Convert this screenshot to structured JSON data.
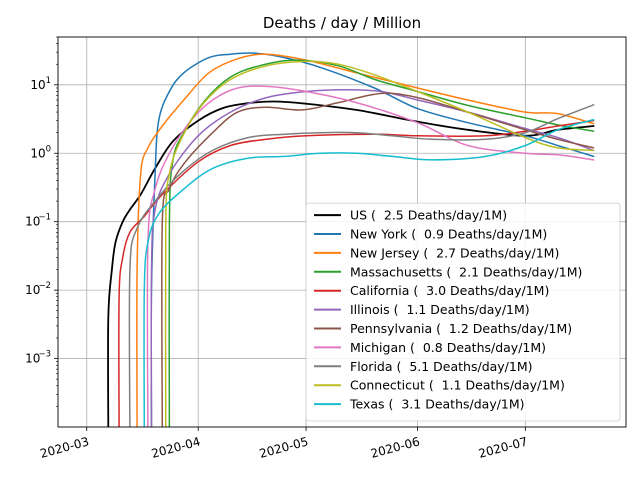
{
  "chart_data": {
    "type": "line",
    "title": "Deaths / day / Million",
    "xlabel": "",
    "ylabel": "",
    "yscale": "log",
    "ylim": [
      0.0001,
      50
    ],
    "xlim": [
      "2020-02-22",
      "2020-07-29"
    ],
    "grid": true,
    "legend_position": "lower-right",
    "x_ticks": [
      {
        "date": "2020-03-01",
        "label": "2020-03"
      },
      {
        "date": "2020-04-01",
        "label": "2020-04"
      },
      {
        "date": "2020-05-01",
        "label": "2020-05"
      },
      {
        "date": "2020-06-01",
        "label": "2020-06"
      },
      {
        "date": "2020-07-01",
        "label": "2020-07"
      }
    ],
    "y_ticks": [
      {
        "value": 0.001,
        "base": "10",
        "exp": "−3"
      },
      {
        "value": 0.01,
        "base": "10",
        "exp": "−2"
      },
      {
        "value": 0.1,
        "base": "10",
        "exp": "−1"
      },
      {
        "value": 1,
        "base": "10",
        "exp": "0"
      },
      {
        "value": 10,
        "base": "10",
        "exp": "1"
      }
    ],
    "series": [
      {
        "name": "US",
        "legend": "US (  2.5 Deaths/day/1M)",
        "color": "#000000",
        "points": [
          [
            "2020-03-07",
            8e-05
          ],
          [
            "2020-03-07",
            0.004
          ],
          [
            "2020-03-08",
            0.02
          ],
          [
            "2020-03-09",
            0.05
          ],
          [
            "2020-03-11",
            0.1
          ],
          [
            "2020-03-13",
            0.15
          ],
          [
            "2020-03-16",
            0.25
          ],
          [
            "2020-03-20",
            0.6
          ],
          [
            "2020-03-25",
            1.5
          ],
          [
            "2020-04-01",
            3.0
          ],
          [
            "2020-04-08",
            4.6
          ],
          [
            "2020-04-15",
            5.4
          ],
          [
            "2020-04-22",
            5.7
          ],
          [
            "2020-05-01",
            5.3
          ],
          [
            "2020-05-15",
            4.3
          ],
          [
            "2020-06-01",
            2.9
          ],
          [
            "2020-06-15",
            2.2
          ],
          [
            "2020-07-01",
            1.8
          ],
          [
            "2020-07-10",
            2.2
          ],
          [
            "2020-07-20",
            2.5
          ]
        ]
      },
      {
        "name": "New York",
        "legend": "New York (  0.9 Deaths/day/1M)",
        "color": "#1f77b4",
        "points": [
          [
            "2020-03-19",
            8e-05
          ],
          [
            "2020-03-19",
            0.01
          ],
          [
            "2020-03-20",
            0.5
          ],
          [
            "2020-03-21",
            3
          ],
          [
            "2020-03-24",
            8
          ],
          [
            "2020-03-28",
            15
          ],
          [
            "2020-04-04",
            25
          ],
          [
            "2020-04-10",
            28
          ],
          [
            "2020-04-17",
            29
          ],
          [
            "2020-04-25",
            25
          ],
          [
            "2020-05-05",
            18
          ],
          [
            "2020-05-20",
            9
          ],
          [
            "2020-06-01",
            4.5
          ],
          [
            "2020-06-15",
            2.8
          ],
          [
            "2020-07-01",
            1.8
          ],
          [
            "2020-07-10",
            1.3
          ],
          [
            "2020-07-20",
            0.9
          ]
        ]
      },
      {
        "name": "New Jersey",
        "legend": "New Jersey (  2.7 Deaths/day/1M)",
        "color": "#ff7f0e",
        "points": [
          [
            "2020-03-15",
            8e-05
          ],
          [
            "2020-03-15",
            0.02
          ],
          [
            "2020-03-16",
            0.5
          ],
          [
            "2020-03-18",
            1.2
          ],
          [
            "2020-03-22",
            2.5
          ],
          [
            "2020-03-28",
            6
          ],
          [
            "2020-04-04",
            15
          ],
          [
            "2020-04-12",
            24
          ],
          [
            "2020-04-20",
            28
          ],
          [
            "2020-05-01",
            23
          ],
          [
            "2020-05-15",
            15
          ],
          [
            "2020-06-01",
            9
          ],
          [
            "2020-06-15",
            6
          ],
          [
            "2020-07-01",
            4
          ],
          [
            "2020-07-10",
            3.8
          ],
          [
            "2020-07-20",
            2.7
          ]
        ]
      },
      {
        "name": "Massachusetts",
        "legend": "Massachusetts (  2.1 Deaths/day/1M)",
        "color": "#2ca02c",
        "points": [
          [
            "2020-03-24",
            8e-05
          ],
          [
            "2020-03-24",
            0.1
          ],
          [
            "2020-03-25",
            0.8
          ],
          [
            "2020-03-28",
            2
          ],
          [
            "2020-04-03",
            6
          ],
          [
            "2020-04-10",
            13
          ],
          [
            "2020-04-18",
            19
          ],
          [
            "2020-04-28",
            23
          ],
          [
            "2020-05-10",
            19
          ],
          [
            "2020-05-20",
            12
          ],
          [
            "2020-06-01",
            8
          ],
          [
            "2020-06-15",
            5
          ],
          [
            "2020-07-01",
            3.3
          ],
          [
            "2020-07-10",
            2.6
          ],
          [
            "2020-07-20",
            2.1
          ]
        ]
      },
      {
        "name": "California",
        "legend": "California (  3.0 Deaths/day/1M)",
        "color": "#d62728",
        "points": [
          [
            "2020-03-10",
            8e-05
          ],
          [
            "2020-03-10",
            0.008
          ],
          [
            "2020-03-11",
            0.03
          ],
          [
            "2020-03-13",
            0.07
          ],
          [
            "2020-03-17",
            0.12
          ],
          [
            "2020-03-22",
            0.25
          ],
          [
            "2020-04-01",
            0.75
          ],
          [
            "2020-04-10",
            1.3
          ],
          [
            "2020-04-20",
            1.6
          ],
          [
            "2020-05-01",
            1.8
          ],
          [
            "2020-05-20",
            1.9
          ],
          [
            "2020-06-01",
            1.8
          ],
          [
            "2020-06-20",
            1.8
          ],
          [
            "2020-07-01",
            2.1
          ],
          [
            "2020-07-10",
            2.5
          ],
          [
            "2020-07-20",
            3.0
          ]
        ]
      },
      {
        "name": "Illinois",
        "legend": "Illinois (  1.1 Deaths/day/1M)",
        "color": "#9467bd",
        "points": [
          [
            "2020-03-19",
            8e-05
          ],
          [
            "2020-03-19",
            0.02
          ],
          [
            "2020-03-20",
            0.15
          ],
          [
            "2020-03-24",
            0.5
          ],
          [
            "2020-04-01",
            1.8
          ],
          [
            "2020-04-10",
            4
          ],
          [
            "2020-04-20",
            6.5
          ],
          [
            "2020-05-01",
            8
          ],
          [
            "2020-05-12",
            8.5
          ],
          [
            "2020-05-22",
            8
          ],
          [
            "2020-06-01",
            6
          ],
          [
            "2020-06-15",
            4
          ],
          [
            "2020-07-01",
            2.3
          ],
          [
            "2020-07-10",
            1.7
          ],
          [
            "2020-07-20",
            1.1
          ]
        ]
      },
      {
        "name": "Pennsylvania",
        "legend": "Pennsylvania (  1.2 Deaths/day/1M)",
        "color": "#8c564b",
        "points": [
          [
            "2020-03-22",
            8e-05
          ],
          [
            "2020-03-22",
            0.1
          ],
          [
            "2020-03-24",
            0.3
          ],
          [
            "2020-03-28",
            0.7
          ],
          [
            "2020-04-05",
            2
          ],
          [
            "2020-04-12",
            4
          ],
          [
            "2020-04-20",
            4.7
          ],
          [
            "2020-04-30",
            4.3
          ],
          [
            "2020-05-10",
            5.5
          ],
          [
            "2020-05-22",
            7.5
          ],
          [
            "2020-06-01",
            6.5
          ],
          [
            "2020-06-15",
            4
          ],
          [
            "2020-07-01",
            2.2
          ],
          [
            "2020-07-10",
            1.6
          ],
          [
            "2020-07-20",
            1.2
          ]
        ]
      },
      {
        "name": "Michigan",
        "legend": "Michigan (  0.8 Deaths/day/1M)",
        "color": "#e377c2",
        "points": [
          [
            "2020-03-18",
            8e-05
          ],
          [
            "2020-03-18",
            0.05
          ],
          [
            "2020-03-20",
            0.3
          ],
          [
            "2020-03-24",
            1
          ],
          [
            "2020-03-30",
            3
          ],
          [
            "2020-04-05",
            6
          ],
          [
            "2020-04-12",
            9
          ],
          [
            "2020-04-20",
            9.5
          ],
          [
            "2020-05-01",
            8
          ],
          [
            "2020-05-15",
            5.5
          ],
          [
            "2020-06-01",
            2.8
          ],
          [
            "2020-06-15",
            1.3
          ],
          [
            "2020-07-01",
            1.0
          ],
          [
            "2020-07-10",
            0.95
          ],
          [
            "2020-07-20",
            0.8
          ]
        ]
      },
      {
        "name": "Florida",
        "legend": "Florida (  5.1 Deaths/day/1M)",
        "color": "#7f7f7f",
        "points": [
          [
            "2020-03-13",
            8e-05
          ],
          [
            "2020-03-13",
            0.02
          ],
          [
            "2020-03-15",
            0.08
          ],
          [
            "2020-03-20",
            0.2
          ],
          [
            "2020-03-27",
            0.5
          ],
          [
            "2020-04-05",
            1.1
          ],
          [
            "2020-04-15",
            1.7
          ],
          [
            "2020-04-25",
            1.9
          ],
          [
            "2020-05-05",
            2.0
          ],
          [
            "2020-05-15",
            2.0
          ],
          [
            "2020-05-25",
            1.8
          ],
          [
            "2020-06-05",
            1.6
          ],
          [
            "2020-06-20",
            1.6
          ],
          [
            "2020-07-01",
            2.0
          ],
          [
            "2020-07-10",
            3.2
          ],
          [
            "2020-07-20",
            5.1
          ]
        ]
      },
      {
        "name": "Connecticut",
        "legend": "Connecticut (  1.1 Deaths/day/1M)",
        "color": "#bcbd22",
        "points": [
          [
            "2020-03-23",
            8e-05
          ],
          [
            "2020-03-23",
            0.1
          ],
          [
            "2020-03-24",
            0.5
          ],
          [
            "2020-03-27",
            1.5
          ],
          [
            "2020-04-02",
            5
          ],
          [
            "2020-04-10",
            12
          ],
          [
            "2020-04-20",
            19
          ],
          [
            "2020-05-01",
            22
          ],
          [
            "2020-05-10",
            20
          ],
          [
            "2020-05-20",
            14
          ],
          [
            "2020-06-01",
            8
          ],
          [
            "2020-06-15",
            4
          ],
          [
            "2020-07-01",
            1.7
          ],
          [
            "2020-07-10",
            1.2
          ],
          [
            "2020-07-20",
            1.1
          ]
        ]
      },
      {
        "name": "Texas",
        "legend": "Texas (  3.1 Deaths/day/1M)",
        "color": "#17becf",
        "points": [
          [
            "2020-03-17",
            8e-05
          ],
          [
            "2020-03-17",
            0.01
          ],
          [
            "2020-03-18",
            0.05
          ],
          [
            "2020-03-21",
            0.13
          ],
          [
            "2020-03-28",
            0.3
          ],
          [
            "2020-04-05",
            0.6
          ],
          [
            "2020-04-15",
            0.85
          ],
          [
            "2020-04-25",
            0.9
          ],
          [
            "2020-05-05",
            1.0
          ],
          [
            "2020-05-15",
            1.0
          ],
          [
            "2020-05-25",
            0.9
          ],
          [
            "2020-06-05",
            0.8
          ],
          [
            "2020-06-20",
            0.9
          ],
          [
            "2020-07-01",
            1.3
          ],
          [
            "2020-07-10",
            2.2
          ],
          [
            "2020-07-20",
            3.1
          ]
        ]
      }
    ]
  }
}
